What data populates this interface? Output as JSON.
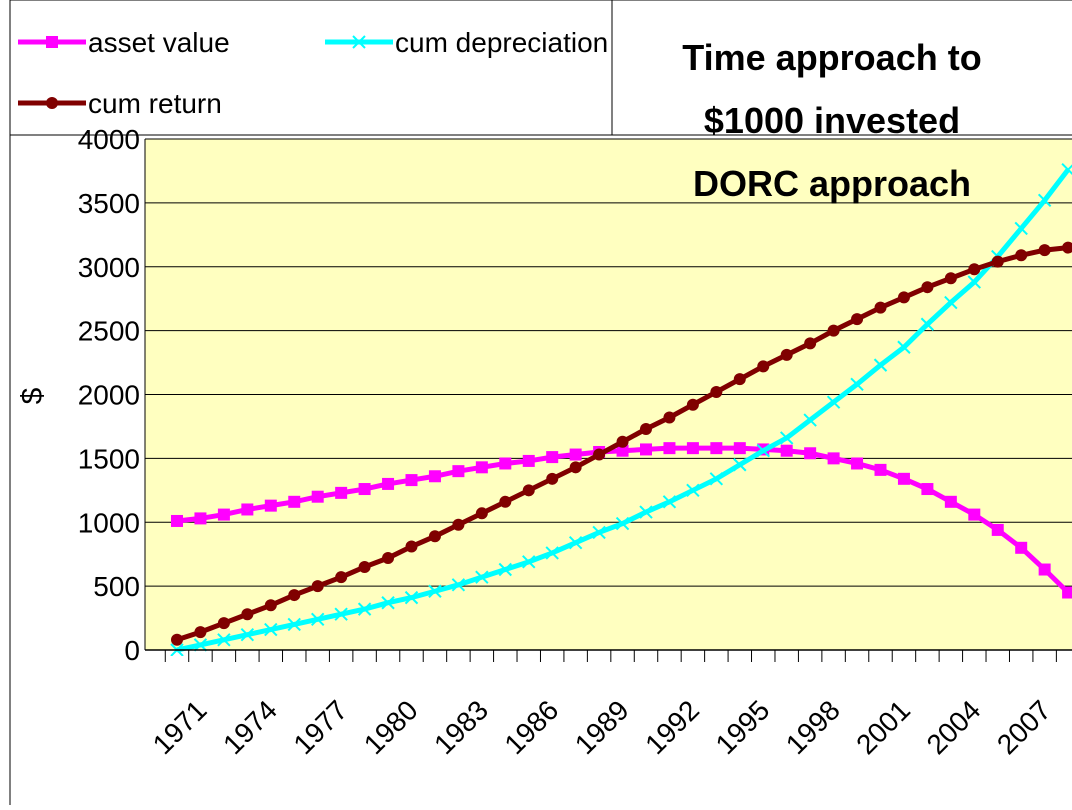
{
  "chart_data": {
    "type": "line",
    "title": [
      "Time approach to",
      "$1000 invested",
      "DORC approach"
    ],
    "y_label": "$",
    "categories": [
      null,
      "1971",
      null,
      null,
      "1974",
      null,
      null,
      "1977",
      null,
      null,
      "1980",
      null,
      null,
      "1983",
      null,
      null,
      "1986",
      null,
      null,
      "1989",
      null,
      null,
      "1992",
      null,
      null,
      "1995",
      null,
      null,
      "1998",
      null,
      null,
      "2001",
      null,
      null,
      "2004",
      null,
      null,
      "2007",
      null
    ],
    "series": [
      {
        "name": "asset value",
        "color": "#ff00ff",
        "marker": "square",
        "values": [
          1010,
          1030,
          1060,
          1100,
          1130,
          1160,
          1200,
          1230,
          1260,
          1300,
          1330,
          1360,
          1400,
          1430,
          1460,
          1480,
          1510,
          1530,
          1550,
          1560,
          1570,
          1580,
          1580,
          1580,
          1580,
          1570,
          1560,
          1540,
          1500,
          1460,
          1410,
          1340,
          1260,
          1160,
          1060,
          940,
          800,
          630,
          450
        ]
      },
      {
        "name": "cum depreciation",
        "color": "#00ffff",
        "marker": "x",
        "values": [
          0,
          40,
          80,
          120,
          160,
          200,
          240,
          280,
          320,
          370,
          410,
          460,
          510,
          570,
          630,
          690,
          760,
          840,
          920,
          990,
          1080,
          1160,
          1250,
          1340,
          1450,
          1560,
          1660,
          1800,
          1940,
          2080,
          2230,
          2370,
          2550,
          2720,
          2880,
          3080,
          3300,
          3520,
          3760
        ]
      },
      {
        "name": "cum return",
        "color": "#800000",
        "marker": "circle",
        "values": [
          80,
          140,
          210,
          280,
          350,
          430,
          500,
          570,
          650,
          720,
          810,
          890,
          980,
          1070,
          1160,
          1250,
          1340,
          1430,
          1530,
          1630,
          1730,
          1820,
          1920,
          2020,
          2120,
          2220,
          2310,
          2400,
          2500,
          2590,
          2680,
          2760,
          2840,
          2910,
          2980,
          3040,
          3090,
          3130,
          3150
        ]
      }
    ],
    "ylim": [
      0,
      4000
    ],
    "yticks": [
      0,
      500,
      1000,
      1500,
      2000,
      2500,
      3000,
      3500,
      4000
    ],
    "grid": true
  }
}
